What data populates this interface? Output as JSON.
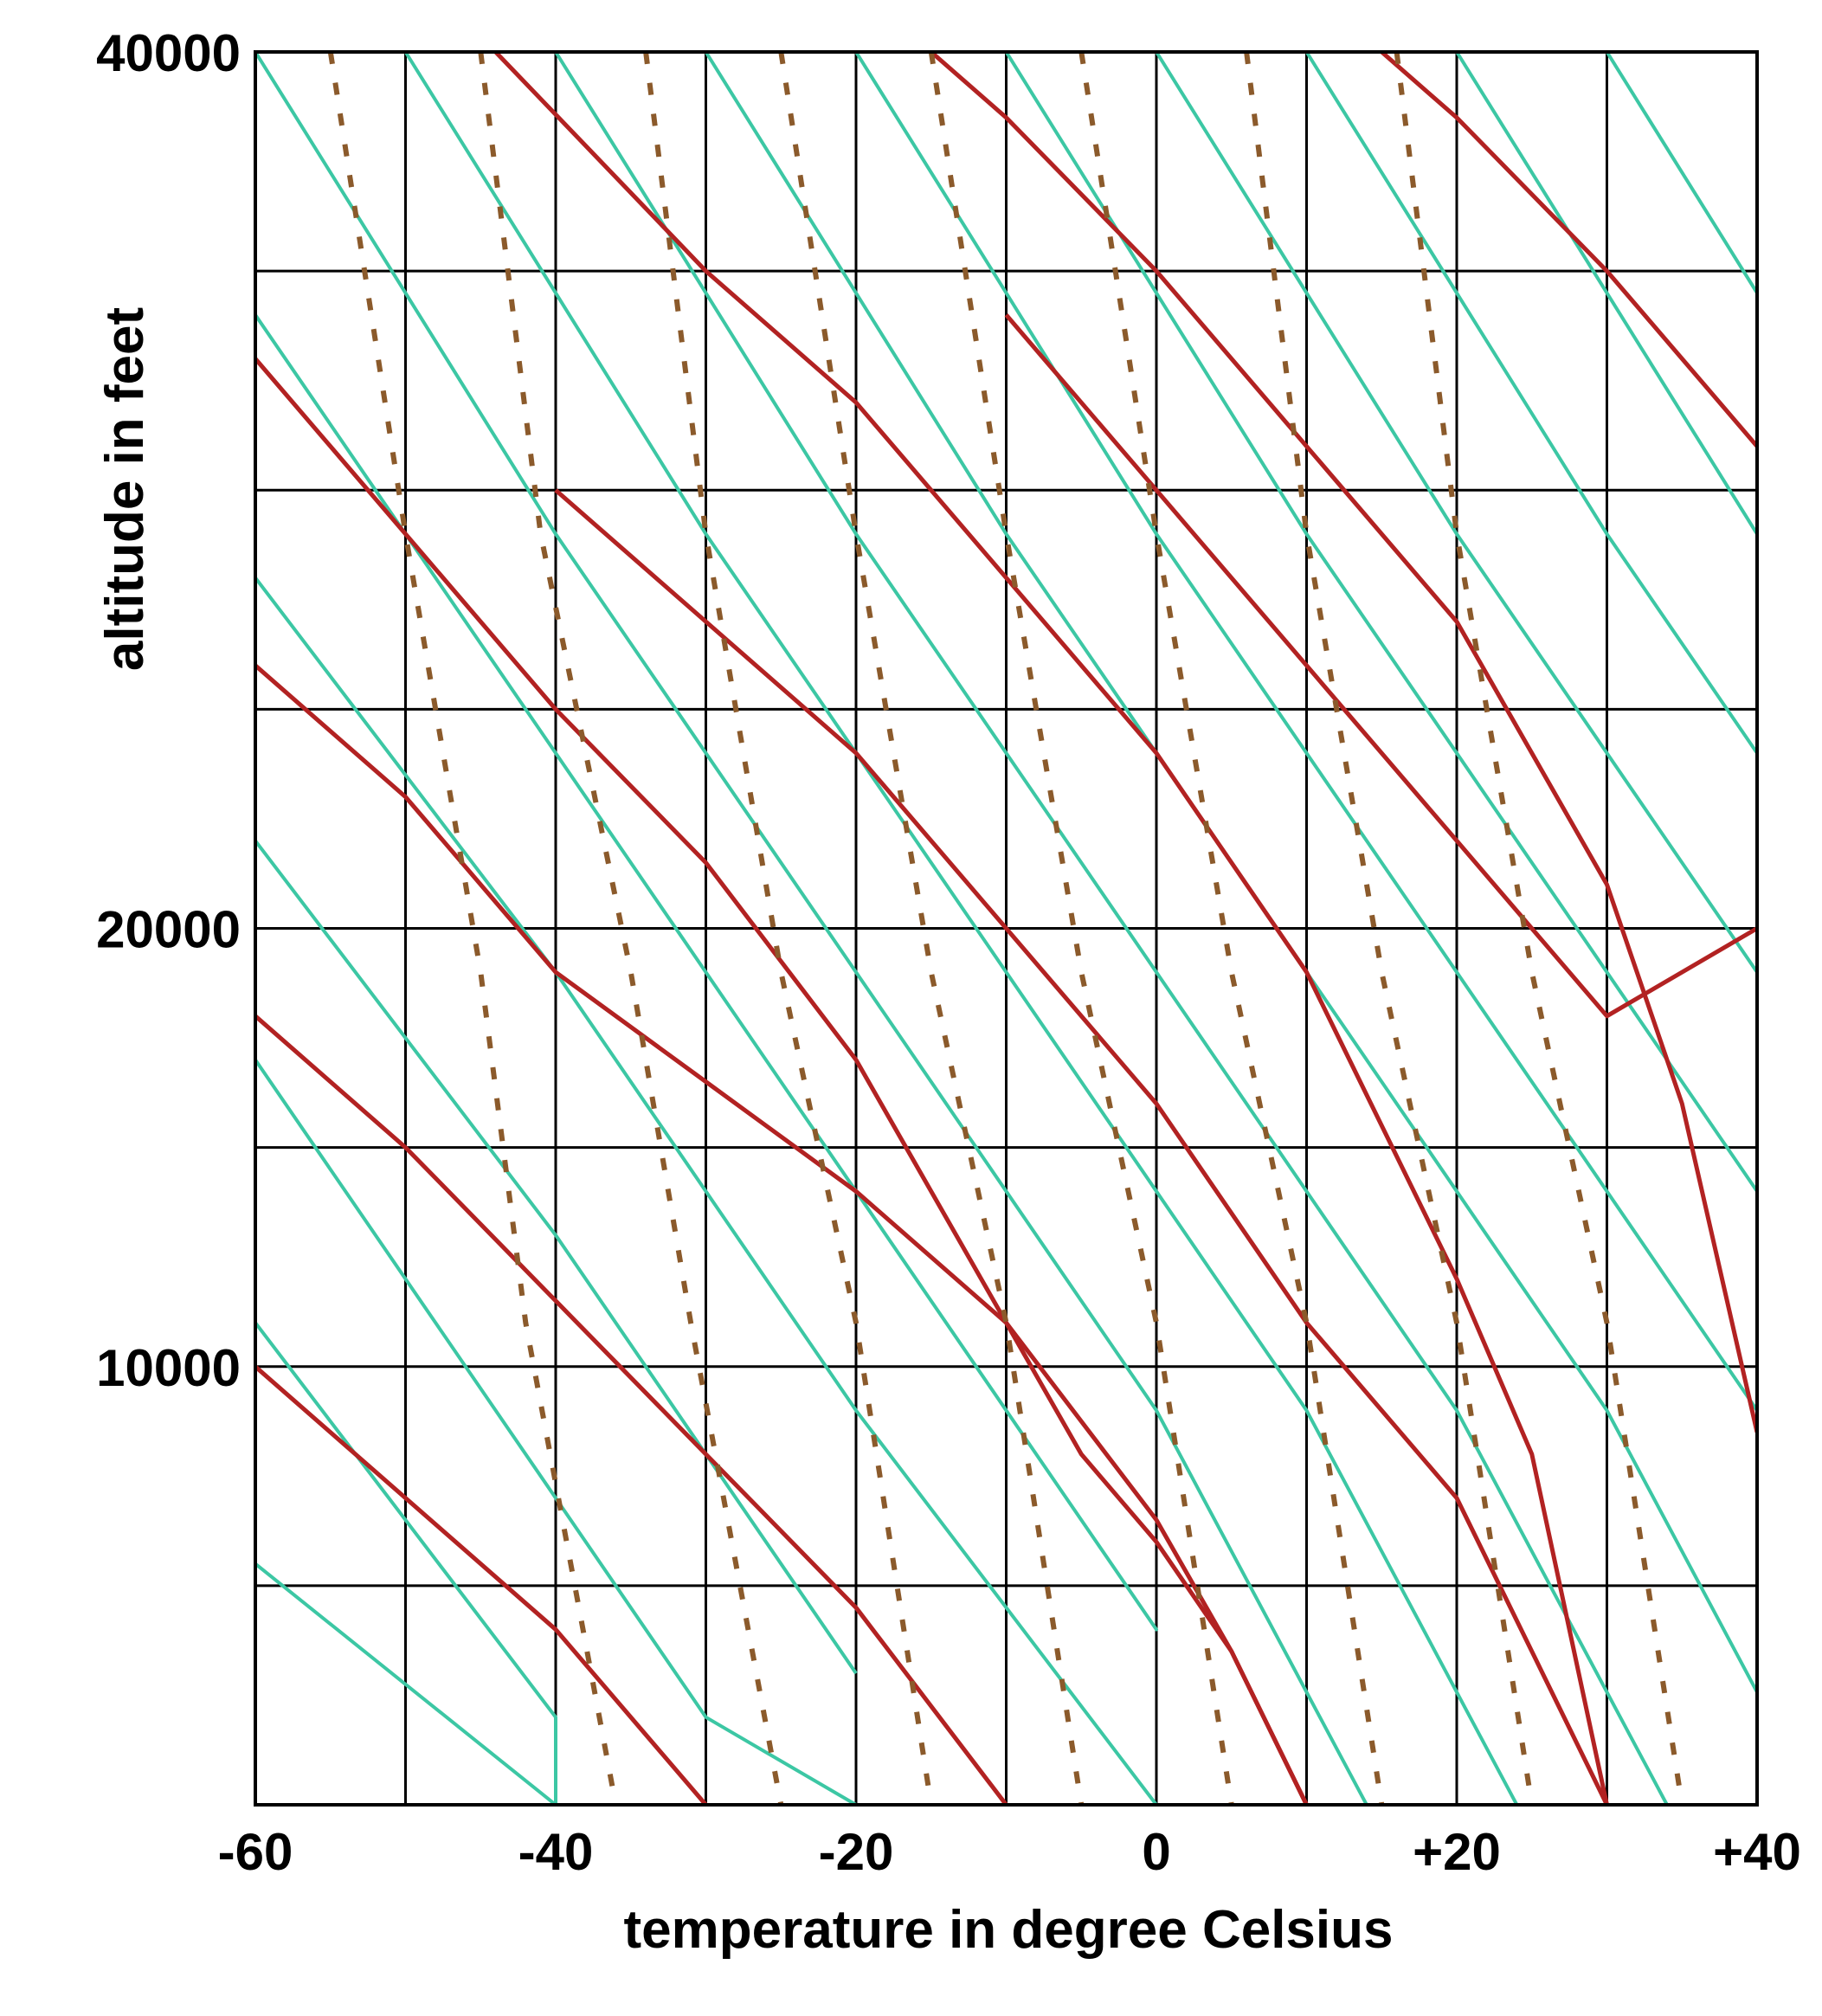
{
  "chart_data": {
    "type": "line",
    "title": "",
    "xlabel": "temperature in degree Celsius",
    "ylabel": "altitude in feet",
    "xlim": [
      -60,
      40
    ],
    "ylim": [
      0,
      40000
    ],
    "x_tick_labels": [
      {
        "value": -60,
        "label": "-60"
      },
      {
        "value": -40,
        "label": "-40"
      },
      {
        "value": -20,
        "label": "-20"
      },
      {
        "value": 0,
        "label": "0"
      },
      {
        "value": 20,
        "label": "+20"
      },
      {
        "value": 40,
        "label": "+40"
      }
    ],
    "y_tick_labels": [
      {
        "value": 10000,
        "label": "10000"
      },
      {
        "value": 20000,
        "label": "20000"
      },
      {
        "value": 40000,
        "label": "40000"
      }
    ],
    "grid": {
      "x_step": 10,
      "y_step": 5000
    },
    "legend": "none",
    "colors": {
      "dry_adiabat": "#3cc7a4",
      "moist_adiabat": "#b22222",
      "mixing_ratio": "#8b5a2b",
      "grid": "#000000"
    },
    "series": [
      {
        "kind": "dry_adiabat",
        "lines": [
          {
            "points": [
              [
                -60,
                40000
              ],
              [
                -40,
                29000
              ],
              [
                -20,
                19000
              ],
              [
                0,
                9000
              ],
              [
                14,
                0
              ]
            ]
          },
          {
            "points": [
              [
                -50,
                40000
              ],
              [
                -30,
                29000
              ],
              [
                -10,
                19000
              ],
              [
                10,
                9000
              ],
              [
                24,
                0
              ]
            ]
          },
          {
            "points": [
              [
                -40,
                40000
              ],
              [
                -20,
                29000
              ],
              [
                0,
                19000
              ],
              [
                20,
                9000
              ],
              [
                34,
                0
              ]
            ]
          },
          {
            "points": [
              [
                -30,
                40000
              ],
              [
                -10,
                29000
              ],
              [
                10,
                19000
              ],
              [
                30,
                9000
              ],
              [
                44,
                0
              ]
            ]
          },
          {
            "points": [
              [
                -20,
                40000
              ],
              [
                0,
                29000
              ],
              [
                20,
                19000
              ],
              [
                40,
                9000
              ]
            ]
          },
          {
            "points": [
              [
                -10,
                40000
              ],
              [
                10,
                29000
              ],
              [
                30,
                19000
              ],
              [
                40,
                14000
              ]
            ]
          },
          {
            "points": [
              [
                0,
                40000
              ],
              [
                20,
                29000
              ],
              [
                40,
                19000
              ]
            ]
          },
          {
            "points": [
              [
                10,
                40000
              ],
              [
                30,
                29000
              ],
              [
                40,
                24000
              ]
            ]
          },
          {
            "points": [
              [
                20,
                40000
              ],
              [
                40,
                29000
              ]
            ]
          },
          {
            "points": [
              [
                30,
                40000
              ],
              [
                40,
                34500
              ]
            ]
          },
          {
            "points": [
              [
                -60,
                34000
              ],
              [
                -40,
                24000
              ],
              [
                -20,
                14000
              ],
              [
                0,
                4000
              ],
              [
                -6,
                7000
              ]
            ]
          },
          {
            "points": [
              [
                -60,
                28000
              ],
              [
                -40,
                19000
              ],
              [
                -20,
                9000
              ],
              [
                0,
                0
              ]
            ]
          },
          {
            "points": [
              [
                -60,
                22000
              ],
              [
                -40,
                13000
              ],
              [
                -20,
                3000
              ],
              [
                -20,
                3000
              ]
            ]
          },
          {
            "points": [
              [
                -60,
                17000
              ],
              [
                -40,
                7000
              ],
              [
                -30,
                2000
              ],
              [
                -20,
                0
              ]
            ]
          },
          {
            "points": [
              [
                -60,
                11000
              ],
              [
                -40,
                2000
              ],
              [
                -40,
                0
              ]
            ]
          },
          {
            "points": [
              [
                -60,
                5500
              ],
              [
                -40,
                0
              ]
            ]
          }
        ]
      },
      {
        "kind": "moist_adiabat",
        "lines": [
          {
            "points": [
              [
                -60,
                10000
              ],
              [
                -50,
                7000
              ],
              [
                -40,
                4000
              ],
              [
                -30,
                0
              ]
            ]
          },
          {
            "points": [
              [
                -60,
                18000
              ],
              [
                -50,
                15000
              ],
              [
                -40,
                11500
              ],
              [
                -30,
                8000
              ],
              [
                -20,
                4500
              ],
              [
                -10,
                0
              ]
            ]
          },
          {
            "points": [
              [
                -60,
                33000
              ],
              [
                -50,
                29000
              ],
              [
                -40,
                25000
              ],
              [
                -30,
                21500
              ],
              [
                -20,
                17000
              ],
              [
                -10,
                11000
              ],
              [
                -5,
                8000
              ],
              [
                0,
                6000
              ],
              [
                5,
                3500
              ],
              [
                10,
                0
              ]
            ]
          },
          {
            "points": [
              [
                -60,
                26000
              ],
              [
                -50,
                23000
              ],
              [
                -40,
                19000
              ],
              [
                -30,
                16500
              ],
              [
                -20,
                14000
              ],
              [
                -10,
                11000
              ],
              [
                0,
                6500
              ],
              [
                5,
                3500
              ],
              [
                10,
                0
              ]
            ]
          },
          {
            "points": [
              [
                -44,
                40000
              ],
              [
                -30,
                35000
              ],
              [
                -20,
                32000
              ],
              [
                -10,
                28000
              ],
              [
                0,
                24000
              ],
              [
                10,
                19000
              ],
              [
                20,
                12000
              ],
              [
                25,
                8000
              ],
              [
                30,
                0
              ]
            ]
          },
          {
            "points": [
              [
                -40,
                30000
              ],
              [
                -30,
                27000
              ],
              [
                -20,
                24000
              ],
              [
                -10,
                20000
              ],
              [
                0,
                16000
              ],
              [
                10,
                11000
              ],
              [
                20,
                7000
              ],
              [
                25,
                3500
              ],
              [
                30,
                0
              ]
            ]
          },
          {
            "points": [
              [
                -15,
                40000
              ],
              [
                -10,
                38500
              ],
              [
                0,
                35000
              ],
              [
                10,
                31000
              ],
              [
                20,
                27000
              ],
              [
                30,
                21000
              ],
              [
                35,
                16000
              ],
              [
                40,
                8500
              ]
            ]
          },
          {
            "points": [
              [
                15,
                40000
              ],
              [
                20,
                38500
              ],
              [
                30,
                35000
              ],
              [
                40,
                31000
              ]
            ]
          },
          {
            "points": [
              [
                -10,
                34000
              ],
              [
                0,
                30000
              ],
              [
                10,
                26000
              ],
              [
                20,
                22000
              ],
              [
                30,
                18000
              ],
              [
                40,
                20000
              ]
            ]
          }
        ]
      },
      {
        "kind": "mixing_ratio",
        "lines": [
          {
            "points": [
              [
                -55,
                40000
              ],
              [
                -50,
                29000
              ],
              [
                -45,
                19000
              ],
              [
                -42,
                11000
              ],
              [
                -36,
                0
              ]
            ]
          },
          {
            "points": [
              [
                -45,
                40000
              ],
              [
                -41,
                29000
              ],
              [
                -35,
                19000
              ],
              [
                -31,
                11000
              ],
              [
                -25,
                0
              ]
            ]
          },
          {
            "points": [
              [
                -34,
                40000
              ],
              [
                -30,
                29000
              ],
              [
                -25,
                19000
              ],
              [
                -20,
                11000
              ],
              [
                -15,
                0
              ]
            ]
          },
          {
            "points": [
              [
                -25,
                40000
              ],
              [
                -20,
                29000
              ],
              [
                -15,
                19000
              ],
              [
                -10,
                11000
              ],
              [
                -5,
                0
              ]
            ]
          },
          {
            "points": [
              [
                -15,
                40000
              ],
              [
                -10,
                29000
              ],
              [
                -5,
                19000
              ],
              [
                0,
                11000
              ],
              [
                5,
                0
              ]
            ]
          },
          {
            "points": [
              [
                -5,
                40000
              ],
              [
                0,
                29000
              ],
              [
                5,
                19000
              ],
              [
                10,
                11000
              ],
              [
                15,
                0
              ]
            ]
          },
          {
            "points": [
              [
                6,
                40000
              ],
              [
                10,
                29000
              ],
              [
                15,
                19000
              ],
              [
                20,
                11000
              ],
              [
                25,
                0
              ]
            ]
          },
          {
            "points": [
              [
                16,
                40000
              ],
              [
                20,
                29000
              ],
              [
                25,
                19000
              ],
              [
                30,
                11000
              ],
              [
                35,
                0
              ]
            ]
          }
        ]
      }
    ]
  }
}
